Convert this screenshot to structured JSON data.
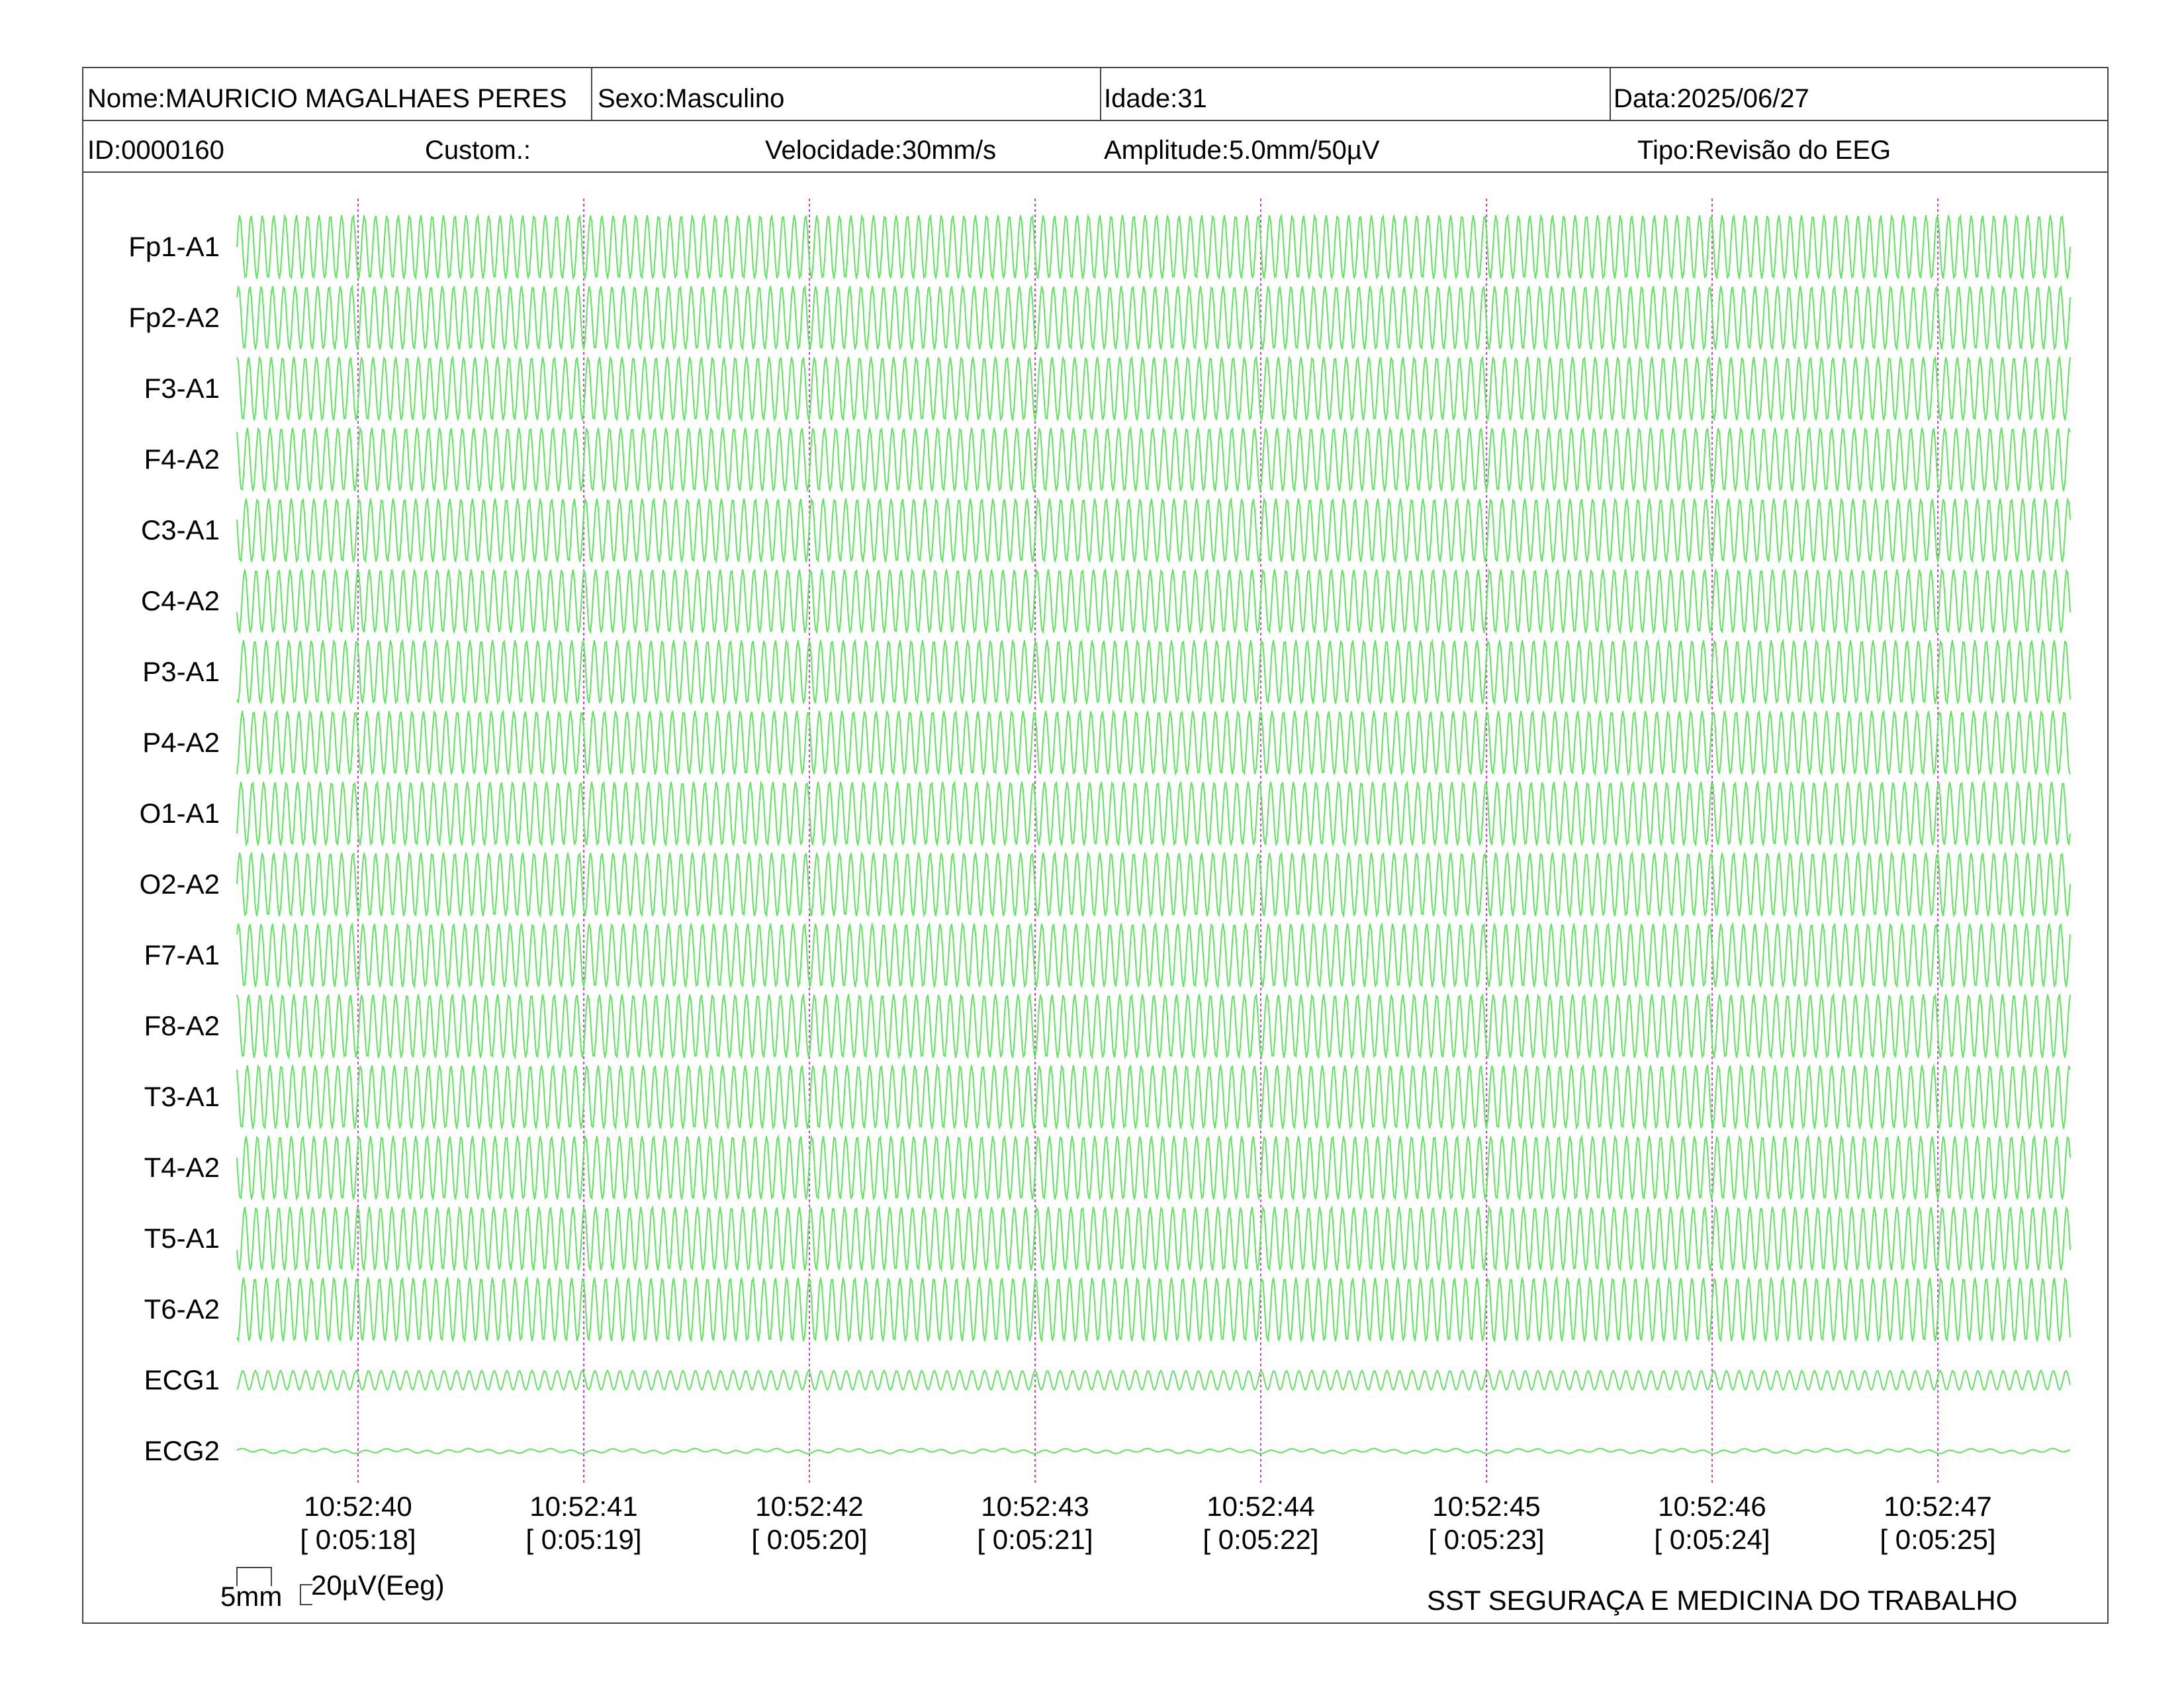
{
  "header": {
    "nome": "Nome:MAURICIO MAGALHAES PERES",
    "sexo": "Sexo:Masculino",
    "idade": "Idade:31",
    "data": "Data:2025/06/27",
    "id": "ID:0000160",
    "custom": "Custom.:",
    "velocidade": "Velocidade:30mm/s",
    "amplitude": "Amplitude:5.0mm/50µV",
    "tipo": "Tipo:Revisão do EEG"
  },
  "chart_data": {
    "type": "line",
    "title": "",
    "channels": [
      "Fp1-A1",
      "Fp2-A2",
      "F3-A1",
      "F4-A2",
      "C3-A1",
      "C4-A2",
      "P3-A1",
      "P4-A2",
      "O1-A1",
      "O2-A2",
      "F7-A1",
      "F8-A2",
      "T3-A1",
      "T4-A2",
      "T5-A1",
      "T6-A2",
      "ECG1",
      "ECG2"
    ],
    "time_ticks": [
      {
        "clock": "10:52:40",
        "elapsed": "[ 0:05:18]"
      },
      {
        "clock": "10:52:41",
        "elapsed": "[ 0:05:19]"
      },
      {
        "clock": "10:52:42",
        "elapsed": "[ 0:05:20]"
      },
      {
        "clock": "10:52:43",
        "elapsed": "[ 0:05:21]"
      },
      {
        "clock": "10:52:44",
        "elapsed": "[ 0:05:22]"
      },
      {
        "clock": "10:52:45",
        "elapsed": "[ 0:05:23]"
      },
      {
        "clock": "10:52:46",
        "elapsed": "[ 0:05:24]"
      },
      {
        "clock": "10:52:47",
        "elapsed": "[ 0:05:25]"
      }
    ],
    "x_range_seconds": [
      0,
      8.1
    ],
    "eeg_oscillation_hz": 20,
    "channel_amplitude_relative": [
      1,
      1,
      1,
      1,
      1,
      1,
      1,
      1,
      1,
      1,
      1,
      1,
      1,
      1,
      1,
      1,
      0.3,
      0.08
    ],
    "trace_color": "#5fe35f",
    "marker_color": "#cc44cc",
    "grid": false
  },
  "scale_bar": {
    "time_label": "5mm",
    "amp_label": "20µV(Eeg)"
  },
  "footer": {
    "institution": "SST SEGURAÇA E MEDICINA DO TRABALHO"
  }
}
